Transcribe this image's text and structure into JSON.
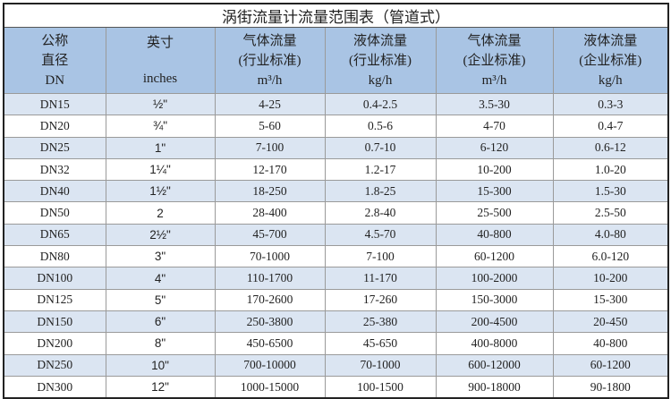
{
  "title": "涡街流量计流量范围表（管道式）",
  "headers": [
    {
      "lines": [
        "公称",
        "直径",
        "DN"
      ]
    },
    {
      "lines": [
        "英寸",
        "inches"
      ]
    },
    {
      "lines": [
        "气体流量",
        "(行业标准)",
        "m³/h"
      ]
    },
    {
      "lines": [
        "液体流量",
        "(行业标准)",
        "kg/h"
      ]
    },
    {
      "lines": [
        "气体流量",
        "(企业标准)",
        "m³/h"
      ]
    },
    {
      "lines": [
        "液体流量",
        "(企业标准)",
        "kg/h"
      ]
    }
  ],
  "rows": [
    [
      "DN15",
      "½\"",
      "4-25",
      "0.4-2.5",
      "3.5-30",
      "0.3-3"
    ],
    [
      "DN20",
      "¾\"",
      "5-60",
      "0.5-6",
      "4-70",
      "0.4-7"
    ],
    [
      "DN25",
      "1\"",
      "7-100",
      "0.7-10",
      "6-120",
      "0.6-12"
    ],
    [
      "DN32",
      "1¼\"",
      "12-170",
      "1.2-17",
      "10-200",
      "1.0-20"
    ],
    [
      "DN40",
      "1½\"",
      "18-250",
      "1.8-25",
      "15-300",
      "1.5-30"
    ],
    [
      "DN50",
      "2",
      "28-400",
      "2.8-40",
      "25-500",
      "2.5-50"
    ],
    [
      "DN65",
      "2½\"",
      "45-700",
      "4.5-70",
      "40-800",
      "4.0-80"
    ],
    [
      "DN80",
      "3\"",
      "70-1000",
      "7-100",
      "60-1200",
      "6.0-120"
    ],
    [
      "DN100",
      "4\"",
      "110-1700",
      "11-170",
      "100-2000",
      "10-200"
    ],
    [
      "DN125",
      "5\"",
      "170-2600",
      "17-260",
      "150-3000",
      "15-300"
    ],
    [
      "DN150",
      "6\"",
      "250-3800",
      "25-380",
      "200-4500",
      "20-450"
    ],
    [
      "DN200",
      "8\"",
      "450-6500",
      "45-650",
      "400-8000",
      "40-800"
    ],
    [
      "DN250",
      "10\"",
      "700-10000",
      "70-1000",
      "600-12000",
      "60-1200"
    ],
    [
      "DN300",
      "12\"",
      "1000-15000",
      "100-1500",
      "900-18000",
      "90-1800"
    ]
  ],
  "colors": {
    "header_bg": "#a9c4e4",
    "row_alt_bg": "#dbe5f2",
    "row_bg": "#ffffff"
  }
}
